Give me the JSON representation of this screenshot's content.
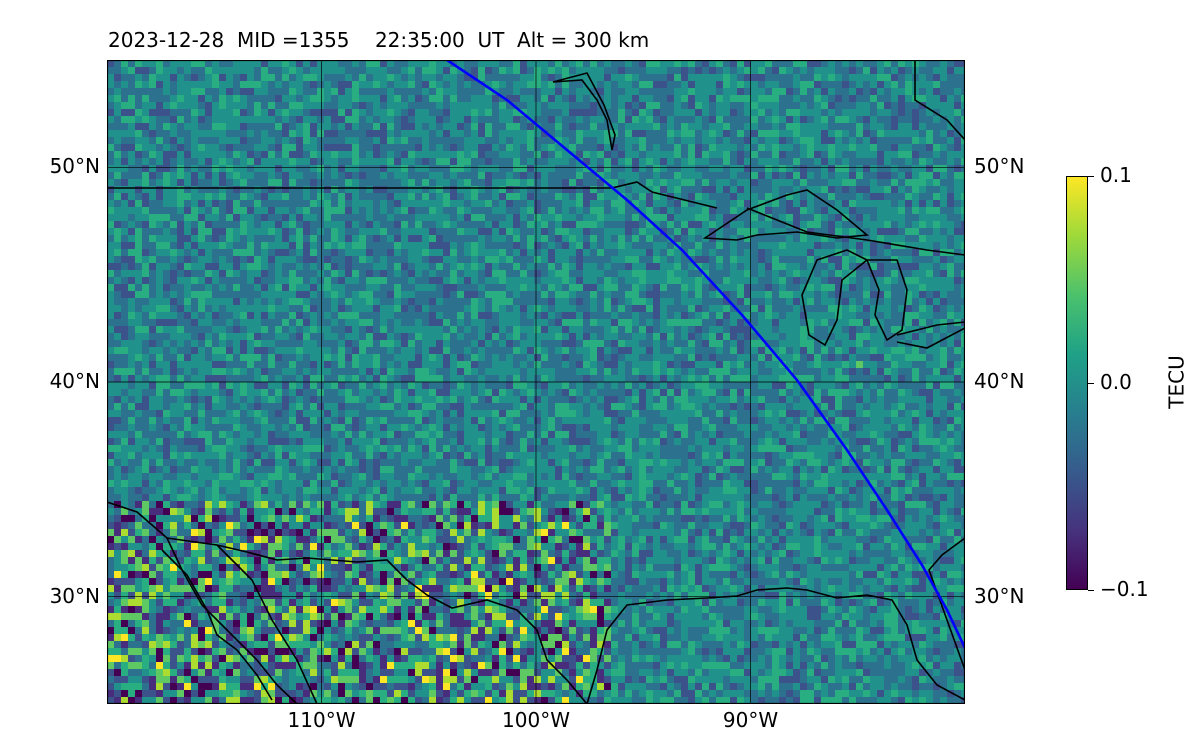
{
  "title": "2023-12-28  MID =1355    22:35:00  UT  Alt = 300 km",
  "map": {
    "lat_ticks": [
      {
        "label": "50°N",
        "lat": 50
      },
      {
        "label": "40°N",
        "lat": 40
      },
      {
        "label": "30°N",
        "lat": 30
      }
    ],
    "lon_ticks": [
      {
        "label": "110°W",
        "lon": -110
      },
      {
        "label": "100°W",
        "lon": -100
      },
      {
        "label": "90°W",
        "lon": -90
      }
    ],
    "extent": {
      "lon_min": -120,
      "lon_max": -80,
      "lat_min": 25,
      "lat_max": 55
    }
  },
  "colorbar": {
    "title": "TECU",
    "colormap": "viridis",
    "min": -0.1,
    "max": 0.1,
    "ticks": [
      {
        "label": "0.1",
        "value": 0.1
      },
      {
        "label": "0.0",
        "value": 0.0
      },
      {
        "label": "−0.1",
        "value": -0.1
      }
    ]
  },
  "colors": {
    "track": "#0000ff",
    "coast": "#000000",
    "grid": "#000000"
  }
}
